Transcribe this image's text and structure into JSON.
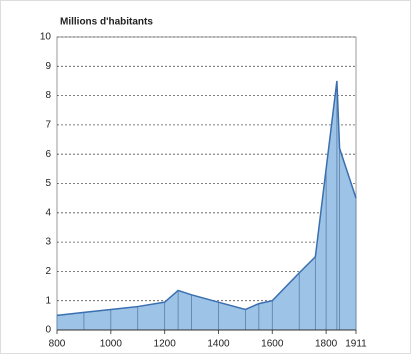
{
  "chart_data": {
    "type": "area",
    "title": "Millions d'habitants",
    "x": [
      800,
      900,
      1000,
      1100,
      1200,
      1250,
      1300,
      1400,
      1500,
      1550,
      1600,
      1700,
      1760,
      1800,
      1840,
      1850,
      1911
    ],
    "values": [
      0.5,
      0.6,
      0.7,
      0.8,
      0.95,
      1.35,
      1.2,
      0.95,
      0.7,
      0.9,
      1.0,
      1.95,
      2.5,
      5.5,
      8.5,
      6.2,
      4.5
    ],
    "color": "#9dc3e6",
    "xlim": [
      800,
      1911
    ],
    "xticks": [
      800,
      1000,
      1200,
      1400,
      1600,
      1800,
      1911
    ],
    "ylim": [
      0,
      10
    ],
    "yticks": [
      0,
      1,
      2,
      3,
      4,
      5,
      6,
      7,
      8,
      9,
      10
    ],
    "grid": true
  }
}
